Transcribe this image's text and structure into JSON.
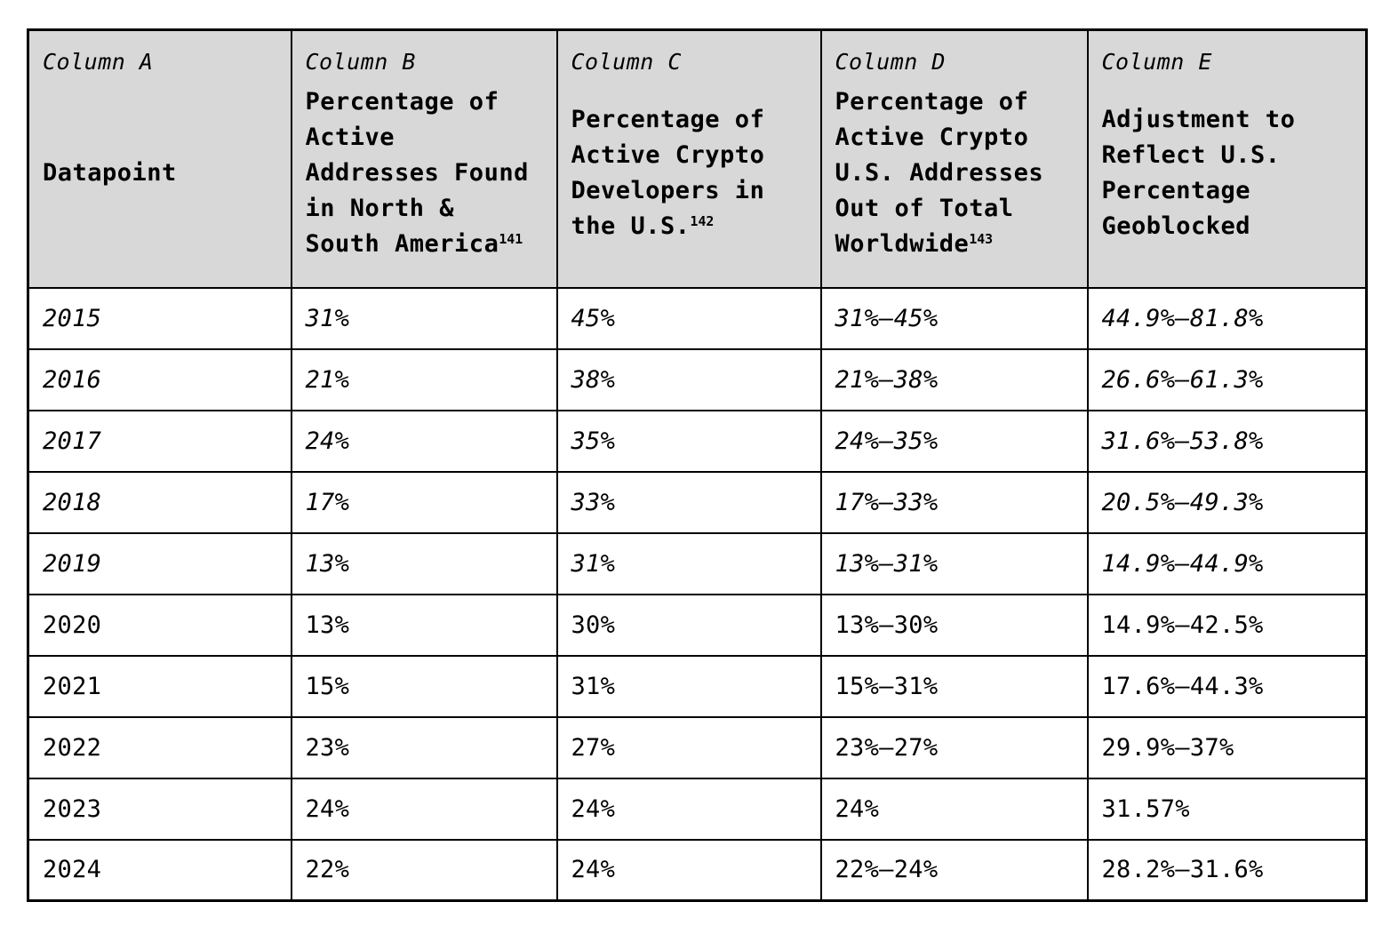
{
  "table": {
    "header": {
      "cols": [
        {
          "label": "Column A",
          "title": "Datapoint",
          "footnote": ""
        },
        {
          "label": "Column B",
          "title": "Percentage of Active Addresses Found in North & South America",
          "footnote": "141"
        },
        {
          "label": "Column C",
          "title": "Percentage of Active Crypto Developers in the U.S.",
          "footnote": "142"
        },
        {
          "label": "Column D",
          "title": "Percentage of Active Crypto U.S. Addresses Out of Total Worldwide",
          "footnote": "143"
        },
        {
          "label": "Column E",
          "title": "Adjustment to Reflect U.S. Percentage Geoblocked",
          "footnote": ""
        }
      ]
    },
    "rows": [
      {
        "year": "2015",
        "col_b": "31%",
        "col_c": "45%",
        "col_d": "31%–45%",
        "col_e": "44.9%–81.8%"
      },
      {
        "year": "2016",
        "col_b": "21%",
        "col_c": "38%",
        "col_d": "21%–38%",
        "col_e": "26.6%–61.3%"
      },
      {
        "year": "2017",
        "col_b": "24%",
        "col_c": "35%",
        "col_d": "24%–35%",
        "col_e": "31.6%–53.8%"
      },
      {
        "year": "2018",
        "col_b": "17%",
        "col_c": "33%",
        "col_d": "17%–33%",
        "col_e": "20.5%–49.3%"
      },
      {
        "year": "2019",
        "col_b": "13%",
        "col_c": "31%",
        "col_d": "13%–31%",
        "col_e": "14.9%–44.9%"
      },
      {
        "year": "2020",
        "col_b": "13%",
        "col_c": "30%",
        "col_d": "13%–30%",
        "col_e": "14.9%–42.5%"
      },
      {
        "year": "2021",
        "col_b": "15%",
        "col_c": "31%",
        "col_d": "15%–31%",
        "col_e": "17.6%–44.3%"
      },
      {
        "year": "2022",
        "col_b": "23%",
        "col_c": "27%",
        "col_d": "23%–27%",
        "col_e": "29.9%–37%"
      },
      {
        "year": "2023",
        "col_b": "24%",
        "col_c": "24%",
        "col_d": "24%",
        "col_e": "31.57%"
      },
      {
        "year": "2024",
        "col_b": "22%",
        "col_c": "24%",
        "col_d": "22%–24%",
        "col_e": "28.2%–31.6%"
      }
    ],
    "style": {
      "header_bg": "#d8d8d8",
      "border_color": "#000000",
      "italic_rows": [
        "2015",
        "2016",
        "2017",
        "2018",
        "2019"
      ]
    }
  }
}
